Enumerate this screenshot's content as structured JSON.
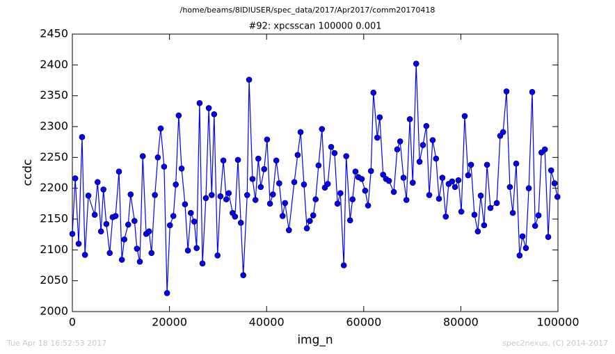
{
  "chart_data": {
    "type": "line",
    "title": "/home/beams/8IDIUSER/spec_data/2017/Apr2017/comm20170418",
    "subtitle": "#92: xpcsscan 100000 0.001",
    "x_label": "img_n",
    "y_label": "ccdc",
    "footer_left": "Tue Apr 18 16:52:53 2017",
    "footer_right": "spec2nexus, (C) 2014-2017",
    "xlim": [
      0,
      100000
    ],
    "xticks": [
      0,
      20000,
      40000,
      60000,
      80000,
      100000
    ],
    "ylim": [
      2000,
      2450
    ],
    "yticks": [
      2000,
      2050,
      2100,
      2150,
      2200,
      2250,
      2300,
      2350,
      2400,
      2450
    ],
    "grid": false,
    "series": [
      {
        "color": "#0000ff",
        "x": [
          0,
          600,
          1300,
          2000,
          2600,
          3300,
          4600,
          5200,
          5900,
          6400,
          7000,
          7700,
          8300,
          8900,
          9600,
          10200,
          10700,
          11500,
          12000,
          12800,
          13300,
          13900,
          14500,
          15200,
          15800,
          16300,
          17000,
          17600,
          18200,
          18900,
          19500,
          20100,
          20800,
          21300,
          21900,
          22500,
          23200,
          23800,
          24400,
          25100,
          25600,
          26200,
          26800,
          27500,
          28100,
          28700,
          29200,
          29900,
          30500,
          31100,
          31700,
          32200,
          33000,
          33500,
          34100,
          34700,
          35200,
          36000,
          36400,
          37100,
          37700,
          38300,
          38800,
          39500,
          40100,
          40700,
          41300,
          42000,
          42600,
          43300,
          43800,
          44600,
          45700,
          46400,
          47000,
          47700,
          48300,
          48900,
          49600,
          50100,
          50700,
          51400,
          52000,
          52600,
          53300,
          54000,
          54600,
          55200,
          55900,
          56400,
          57200,
          57700,
          58300,
          58900,
          59600,
          60300,
          60900,
          61500,
          62000,
          62800,
          63300,
          64000,
          64600,
          65200,
          66200,
          66900,
          67500,
          68200,
          68800,
          69500,
          70100,
          70800,
          71500,
          72200,
          72900,
          73500,
          74200,
          74900,
          75500,
          76200,
          76900,
          77500,
          78200,
          78800,
          79500,
          80100,
          80800,
          81500,
          82100,
          82800,
          83500,
          84100,
          84800,
          85400,
          86100,
          87400,
          88100,
          88700,
          89400,
          90100,
          90700,
          91400,
          92100,
          92700,
          93400,
          94000,
          94700,
          95300,
          96000,
          96600,
          97300,
          98000,
          98600,
          99300,
          99900
        ],
        "values": [
          2126,
          2216,
          2110,
          2283,
          2092,
          2188,
          2157,
          2210,
          2130,
          2198,
          2142,
          2095,
          2153,
          2155,
          2227,
          2084,
          2117,
          2141,
          2190,
          2147,
          2102,
          2081,
          2252,
          2126,
          2130,
          2095,
          2189,
          2250,
          2297,
          2235,
          2030,
          2140,
          2155,
          2206,
          2318,
          2232,
          2174,
          2099,
          2160,
          2146,
          2103,
          2338,
          2078,
          2184,
          2330,
          2189,
          2320,
          2091,
          2187,
          2245,
          2182,
          2192,
          2160,
          2154,
          2246,
          2144,
          2059,
          2189,
          2376,
          2215,
          2181,
          2248,
          2202,
          2231,
          2279,
          2175,
          2190,
          2245,
          2208,
          2155,
          2176,
          2132,
          2210,
          2254,
          2291,
          2206,
          2135,
          2147,
          2156,
          2182,
          2237,
          2296,
          2201,
          2207,
          2267,
          2257,
          2175,
          2192,
          2075,
          2252,
          2148,
          2182,
          2227,
          2218,
          2215,
          2196,
          2172,
          2228,
          2355,
          2282,
          2315,
          2222,
          2215,
          2212,
          2194,
          2263,
          2276,
          2217,
          2181,
          2312,
          2209,
          2402,
          2243,
          2270,
          2301,
          2189,
          2278,
          2248,
          2183,
          2217,
          2154,
          2207,
          2211,
          2202,
          2213,
          2162,
          2317,
          2221,
          2238,
          2157,
          2130,
          2188,
          2140,
          2238,
          2168,
          2176,
          2285,
          2291,
          2357,
          2202,
          2160,
          2240,
          2091,
          2122,
          2103,
          2200,
          2356,
          2139,
          2156,
          2258,
          2263,
          2121,
          2229,
          2208,
          2186
        ]
      }
    ]
  }
}
